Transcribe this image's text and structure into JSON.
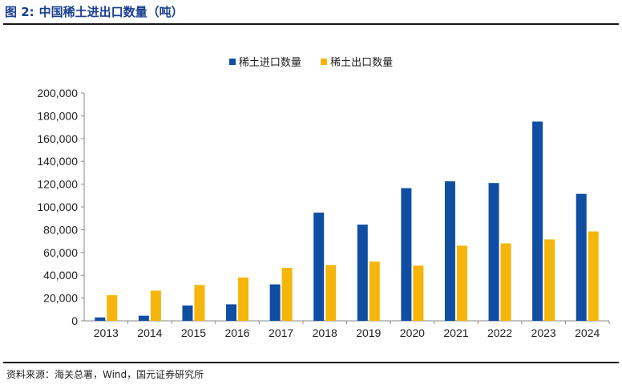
{
  "figure": {
    "label": "图 2:",
    "title": "中国稀土进出口数量（吨）"
  },
  "source": "资料来源：海关总署，Wind，国元证券研究所",
  "colors": {
    "import": "#0f4ea3",
    "export": "#f5b50a",
    "title": "#1a3f8f"
  },
  "chart_data": {
    "type": "bar",
    "categories": [
      "2013",
      "2014",
      "2015",
      "2016",
      "2017",
      "2018",
      "2019",
      "2020",
      "2021",
      "2022",
      "2023",
      "2024"
    ],
    "series": [
      {
        "name": "稀土进口数量",
        "values": [
          3000,
          4500,
          13500,
          14500,
          32000,
          95000,
          84500,
          116500,
          122500,
          121000,
          175000,
          111500
        ]
      },
      {
        "name": "稀土出口数量",
        "values": [
          22500,
          26500,
          31500,
          38000,
          46500,
          49000,
          52000,
          48500,
          66000,
          68000,
          71500,
          78500
        ]
      }
    ],
    "ylim": [
      0,
      200000
    ],
    "yticks": [
      "0",
      "20,000",
      "40,000",
      "60,000",
      "80,000",
      "100,000",
      "120,000",
      "140,000",
      "160,000",
      "180,000",
      "200,000"
    ],
    "legend_position": "top-center",
    "grid": false
  }
}
